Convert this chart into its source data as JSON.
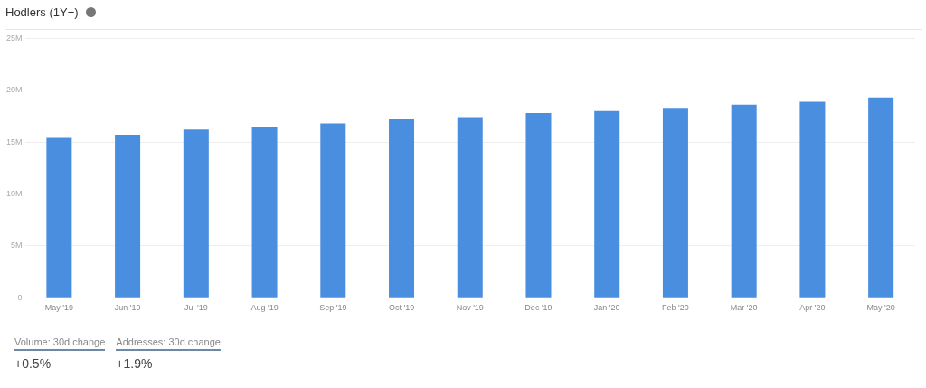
{
  "chart_data": {
    "type": "bar",
    "title": "Hodlers (1Y+)",
    "categories": [
      "May '19",
      "Jun '19",
      "Jul '19",
      "Aug '19",
      "Sep '19",
      "Oct '19",
      "Nov '19",
      "Dec '19",
      "Jan '20",
      "Feb '20",
      "Mar '20",
      "Apr '20",
      "May '20"
    ],
    "values": [
      15.4,
      15.7,
      16.2,
      16.5,
      16.8,
      17.2,
      17.4,
      17.8,
      18.0,
      18.3,
      18.6,
      18.9,
      19.3
    ],
    "color": "#4a8fdf",
    "ylim": [
      0,
      25
    ],
    "yticks": [
      {
        "value": 0,
        "label": "0"
      },
      {
        "value": 5,
        "label": "5M"
      },
      {
        "value": 10,
        "label": "10M"
      },
      {
        "value": 15,
        "label": "15M"
      },
      {
        "value": 20,
        "label": "20M"
      },
      {
        "value": 25,
        "label": "25M"
      }
    ],
    "grid": "y",
    "legend": false,
    "annotations": [
      "Volume: 30d change",
      "+0.5%",
      "Addresses: 30d change",
      "+1.9%"
    ]
  }
}
